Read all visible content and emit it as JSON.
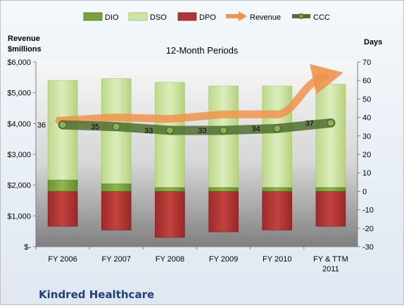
{
  "company": "Kindred Healthcare",
  "colors": {
    "dio": "#77a13a",
    "dso": "#cde4a2",
    "dpo": "#b13533",
    "revenue": "#f0944c",
    "ccc": "#4f6f2f"
  },
  "chart_data": {
    "type": "bar",
    "title": "12-Month Periods",
    "y_left_label": [
      "Revenue",
      "$millions"
    ],
    "y_right_label": "Days",
    "categories": [
      "FY 2006",
      "FY 2007",
      "FY 2008",
      "FY 2009",
      "FY 2010",
      "FY & TTM 2011"
    ],
    "y_left": {
      "min": 0,
      "max": 6000,
      "ticks": [
        "$-",
        "$1,000",
        "$2,000",
        "$3,000",
        "$4,000",
        "$5,000",
        "$6,000"
      ]
    },
    "y_right": {
      "min": -30,
      "max": 70,
      "ticks": [
        "-30",
        "-20",
        "-10",
        "0",
        "10",
        "20",
        "30",
        "40",
        "50",
        "60",
        "70"
      ]
    },
    "series": [
      {
        "name": "DIO",
        "type": "bar",
        "values": [
          6,
          4,
          2,
          2,
          2,
          2
        ]
      },
      {
        "name": "DSO",
        "type": "bar",
        "values": [
          54,
          57,
          57,
          55,
          55,
          56
        ]
      },
      {
        "name": "DPO",
        "type": "bar",
        "values": [
          -19,
          -21,
          -25,
          -22,
          -21,
          -19
        ]
      },
      {
        "name": "Revenue",
        "type": "line",
        "axis": "left",
        "values": [
          4100,
          4200,
          4150,
          4300,
          4300,
          5550
        ]
      },
      {
        "name": "CCC",
        "type": "line",
        "axis": "right",
        "values": [
          36,
          35,
          33,
          33,
          34,
          37
        ]
      }
    ],
    "data_labels": [
      "36",
      "35",
      "33",
      "33",
      "34",
      "37"
    ],
    "legend_position": "top",
    "grid": false
  }
}
